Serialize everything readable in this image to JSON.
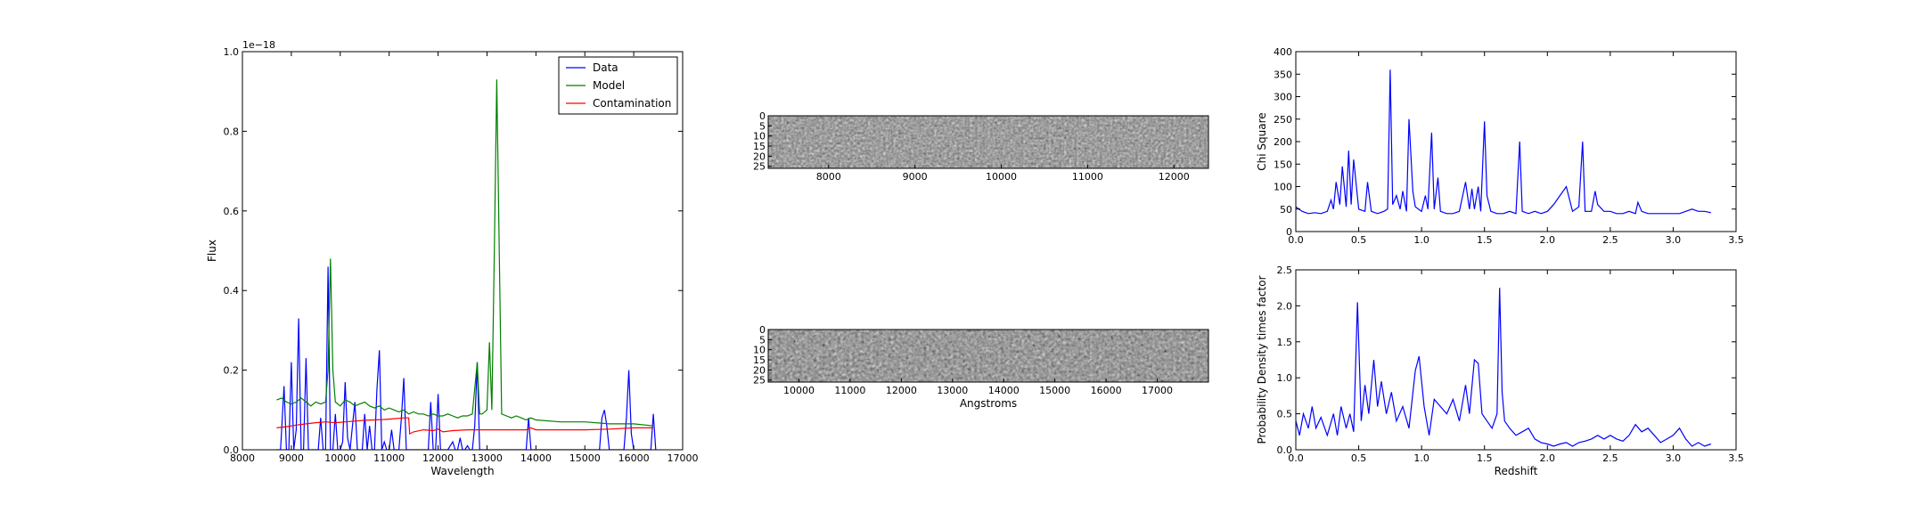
{
  "chart_data": [
    {
      "id": "spectrum",
      "type": "line",
      "xlabel": "Wavelength",
      "ylabel": "Flux",
      "offset_label": "1e−18",
      "xlim": [
        8000,
        17000
      ],
      "ylim": [
        0.0,
        1.0
      ],
      "xticks": [
        "8000",
        "9000",
        "10000",
        "11000",
        "12000",
        "13000",
        "14000",
        "15000",
        "16000",
        "17000"
      ],
      "yticks": [
        "0.0",
        "0.2",
        "0.4",
        "0.6",
        "0.8",
        "1.0"
      ],
      "legend_position": "top-right",
      "series": [
        {
          "name": "Data",
          "color": "#0000ff",
          "x": [
            8700,
            8780,
            8850,
            8900,
            8950,
            9000,
            9050,
            9100,
            9150,
            9200,
            9250,
            9300,
            9350,
            9400,
            9450,
            9500,
            9550,
            9600,
            9650,
            9700,
            9750,
            9800,
            9850,
            9900,
            9950,
            10000,
            10050,
            10100,
            10150,
            10200,
            10250,
            10300,
            10350,
            10400,
            10450,
            10500,
            10550,
            10600,
            10650,
            10700,
            10750,
            10800,
            10850,
            10900,
            10950,
            11000,
            11050,
            11100,
            11150,
            11200,
            11250,
            11300,
            11350,
            11400,
            11450,
            11500,
            11550,
            11600,
            11650,
            11700,
            11750,
            11800,
            11850,
            11900,
            11950,
            12000,
            12050,
            12100,
            12200,
            12300,
            12350,
            12400,
            12450,
            12500,
            12550,
            12600,
            12650,
            12700,
            12750,
            12800,
            12850,
            12900,
            13000,
            13500,
            13800,
            13850,
            13900,
            13950,
            14000,
            14500,
            15000,
            15200,
            15300,
            15350,
            15400,
            15450,
            15500,
            15550,
            15600,
            15650,
            15700,
            15750,
            15800,
            15850,
            15900,
            15950,
            16000,
            16100,
            16200,
            16300,
            16350,
            16400,
            16450
          ],
          "y": [
            0.0,
            0.0,
            0.16,
            0.0,
            0.0,
            0.22,
            0.0,
            0.05,
            0.33,
            0.0,
            0.0,
            0.23,
            0.0,
            0.0,
            0.0,
            0.0,
            0.0,
            0.08,
            0.0,
            0.0,
            0.46,
            0.0,
            0.0,
            0.09,
            0.0,
            0.0,
            0.02,
            0.17,
            0.03,
            0.0,
            0.06,
            0.12,
            0.0,
            0.0,
            0.0,
            0.09,
            0.0,
            0.06,
            0.0,
            0.0,
            0.15,
            0.25,
            0.0,
            0.02,
            0.0,
            0.0,
            0.05,
            0.0,
            0.0,
            0.0,
            0.08,
            0.18,
            0.0,
            0.0,
            0.0,
            0.0,
            0.0,
            0.0,
            0.0,
            0.0,
            0.0,
            0.0,
            0.12,
            0.0,
            0.0,
            0.14,
            0.0,
            0.0,
            0.0,
            0.02,
            0.0,
            0.0,
            0.03,
            0.0,
            0.0,
            0.01,
            0.0,
            0.0,
            0.06,
            0.22,
            0.0,
            0.0,
            0.0,
            0.0,
            0.0,
            0.08,
            0.0,
            0.0,
            0.0,
            0.0,
            0.0,
            0.0,
            0.0,
            0.08,
            0.1,
            0.06,
            0.0,
            0.0,
            0.0,
            0.0,
            0.0,
            0.0,
            0.0,
            0.08,
            0.2,
            0.04,
            0.0,
            0.0,
            0.0,
            0.0,
            0.0,
            0.09,
            0.0
          ]
        },
        {
          "name": "Model",
          "color": "#008000",
          "x": [
            8700,
            8800,
            8900,
            9000,
            9100,
            9200,
            9300,
            9400,
            9500,
            9600,
            9700,
            9750,
            9800,
            9850,
            9900,
            10000,
            10100,
            10200,
            10300,
            10400,
            10500,
            10600,
            10700,
            10800,
            10900,
            11000,
            11100,
            11200,
            11300,
            11400,
            11500,
            11600,
            11700,
            11800,
            11900,
            12000,
            12100,
            12200,
            12300,
            12400,
            12500,
            12600,
            12700,
            12800,
            12850,
            12900,
            13000,
            13050,
            13100,
            13150,
            13200,
            13250,
            13300,
            13400,
            13500,
            13600,
            13700,
            13800,
            13900,
            14000,
            14500,
            15000,
            15500,
            16000,
            16400
          ],
          "y": [
            0.125,
            0.13,
            0.12,
            0.115,
            0.12,
            0.13,
            0.12,
            0.11,
            0.12,
            0.115,
            0.12,
            0.2,
            0.48,
            0.2,
            0.12,
            0.11,
            0.125,
            0.12,
            0.11,
            0.115,
            0.12,
            0.11,
            0.105,
            0.11,
            0.1,
            0.105,
            0.1,
            0.095,
            0.1,
            0.09,
            0.095,
            0.09,
            0.09,
            0.085,
            0.09,
            0.085,
            0.085,
            0.09,
            0.085,
            0.08,
            0.085,
            0.085,
            0.09,
            0.22,
            0.09,
            0.09,
            0.1,
            0.27,
            0.1,
            0.5,
            0.93,
            0.5,
            0.09,
            0.085,
            0.08,
            0.085,
            0.08,
            0.075,
            0.08,
            0.075,
            0.07,
            0.07,
            0.065,
            0.065,
            0.06
          ]
        },
        {
          "name": "Contamination",
          "color": "#ff0000",
          "x": [
            8700,
            8900,
            9100,
            9300,
            9500,
            9700,
            9900,
            10100,
            10300,
            10500,
            10700,
            10900,
            11100,
            11300,
            11400,
            11420,
            11500,
            11700,
            11900,
            12000,
            12100,
            12300,
            12600,
            13000,
            13500,
            13800,
            13900,
            14000,
            14500,
            15000,
            15500,
            16000,
            16400
          ],
          "y": [
            0.055,
            0.058,
            0.062,
            0.065,
            0.068,
            0.07,
            0.068,
            0.07,
            0.072,
            0.074,
            0.075,
            0.076,
            0.078,
            0.08,
            0.08,
            0.04,
            0.045,
            0.05,
            0.048,
            0.052,
            0.045,
            0.048,
            0.05,
            0.05,
            0.05,
            0.05,
            0.055,
            0.05,
            0.05,
            0.05,
            0.052,
            0.055,
            0.055
          ]
        }
      ]
    },
    {
      "id": "stamp-1",
      "type": "heatmap",
      "xlim": [
        7300,
        12400
      ],
      "xticks": [
        "8000",
        "9000",
        "10000",
        "11000",
        "12000"
      ],
      "yticks": [
        "0",
        "5",
        "10",
        "15",
        "20",
        "25"
      ]
    },
    {
      "id": "stamp-2",
      "type": "heatmap",
      "xlabel": "Angstroms",
      "xlim": [
        9400,
        18000
      ],
      "xticks": [
        "10000",
        "11000",
        "12000",
        "13000",
        "14000",
        "15000",
        "16000",
        "17000"
      ],
      "yticks": [
        "0",
        "5",
        "10",
        "15",
        "20",
        "25"
      ]
    },
    {
      "id": "chi-square",
      "type": "line",
      "ylabel": "Chi Square",
      "xlim": [
        0.0,
        3.5
      ],
      "ylim": [
        0,
        400
      ],
      "xticks": [
        "0.0",
        "0.5",
        "1.0",
        "1.5",
        "2.0",
        "2.5",
        "3.0",
        "3.5"
      ],
      "yticks": [
        "0",
        "50",
        "100",
        "150",
        "200",
        "250",
        "300",
        "350",
        "400"
      ],
      "series": [
        {
          "color": "#0000ff",
          "x": [
            0.0,
            0.05,
            0.1,
            0.15,
            0.2,
            0.25,
            0.28,
            0.3,
            0.32,
            0.35,
            0.37,
            0.4,
            0.42,
            0.44,
            0.46,
            0.5,
            0.55,
            0.57,
            0.6,
            0.65,
            0.7,
            0.73,
            0.75,
            0.77,
            0.8,
            0.83,
            0.85,
            0.88,
            0.9,
            0.93,
            0.95,
            1.0,
            1.03,
            1.05,
            1.08,
            1.1,
            1.13,
            1.15,
            1.2,
            1.25,
            1.3,
            1.35,
            1.38,
            1.4,
            1.42,
            1.45,
            1.47,
            1.5,
            1.52,
            1.55,
            1.6,
            1.65,
            1.7,
            1.75,
            1.78,
            1.8,
            1.85,
            1.9,
            1.95,
            2.0,
            2.05,
            2.1,
            2.15,
            2.2,
            2.25,
            2.28,
            2.3,
            2.35,
            2.38,
            2.4,
            2.45,
            2.5,
            2.55,
            2.6,
            2.65,
            2.7,
            2.72,
            2.75,
            2.8,
            2.85,
            2.9,
            2.95,
            3.0,
            3.05,
            3.1,
            3.15,
            3.2,
            3.25,
            3.3
          ],
          "y": [
            55,
            45,
            40,
            42,
            40,
            45,
            70,
            50,
            110,
            60,
            145,
            55,
            180,
            60,
            160,
            50,
            45,
            110,
            45,
            40,
            45,
            50,
            360,
            60,
            80,
            50,
            90,
            45,
            250,
            90,
            55,
            45,
            80,
            50,
            220,
            50,
            120,
            45,
            40,
            40,
            45,
            110,
            50,
            95,
            50,
            100,
            45,
            245,
            80,
            45,
            40,
            40,
            45,
            40,
            200,
            45,
            40,
            45,
            40,
            45,
            60,
            80,
            100,
            45,
            55,
            200,
            45,
            45,
            90,
            60,
            45,
            45,
            40,
            40,
            45,
            40,
            65,
            45,
            40,
            40,
            40,
            40,
            40,
            40,
            45,
            50,
            45,
            45,
            42
          ]
        }
      ]
    },
    {
      "id": "probability",
      "type": "line",
      "ylabel": "Probability Density times factor",
      "xlabel": "Redshift",
      "xlim": [
        0.0,
        3.5
      ],
      "ylim": [
        0.0,
        2.5
      ],
      "xticks": [
        "0.0",
        "0.5",
        "1.0",
        "1.5",
        "2.0",
        "2.5",
        "3.0",
        "3.5"
      ],
      "yticks": [
        "0.0",
        "0.5",
        "1.0",
        "1.5",
        "2.0",
        "2.5"
      ],
      "series": [
        {
          "color": "#0000ff",
          "x": [
            0.0,
            0.03,
            0.06,
            0.1,
            0.13,
            0.16,
            0.2,
            0.25,
            0.3,
            0.33,
            0.36,
            0.4,
            0.43,
            0.46,
            0.49,
            0.52,
            0.55,
            0.58,
            0.62,
            0.65,
            0.68,
            0.72,
            0.76,
            0.8,
            0.85,
            0.9,
            0.95,
            0.98,
            1.02,
            1.06,
            1.1,
            1.15,
            1.2,
            1.25,
            1.3,
            1.35,
            1.38,
            1.42,
            1.45,
            1.48,
            1.52,
            1.56,
            1.6,
            1.62,
            1.64,
            1.66,
            1.7,
            1.75,
            1.8,
            1.85,
            1.9,
            1.95,
            2.0,
            2.05,
            2.1,
            2.15,
            2.2,
            2.25,
            2.3,
            2.35,
            2.4,
            2.45,
            2.5,
            2.55,
            2.6,
            2.65,
            2.7,
            2.75,
            2.8,
            2.85,
            2.9,
            2.95,
            3.0,
            3.05,
            3.1,
            3.15,
            3.2,
            3.25,
            3.3
          ],
          "y": [
            0.4,
            0.2,
            0.5,
            0.3,
            0.6,
            0.3,
            0.45,
            0.2,
            0.5,
            0.2,
            0.6,
            0.3,
            0.5,
            0.25,
            2.05,
            0.4,
            0.9,
            0.5,
            1.25,
            0.6,
            0.95,
            0.5,
            0.8,
            0.4,
            0.6,
            0.3,
            1.1,
            1.3,
            0.6,
            0.2,
            0.7,
            0.6,
            0.5,
            0.7,
            0.4,
            0.9,
            0.5,
            1.25,
            1.2,
            0.5,
            0.4,
            0.3,
            0.5,
            2.25,
            0.8,
            0.4,
            0.3,
            0.2,
            0.25,
            0.3,
            0.15,
            0.1,
            0.08,
            0.05,
            0.08,
            0.1,
            0.05,
            0.1,
            0.12,
            0.15,
            0.2,
            0.15,
            0.2,
            0.15,
            0.12,
            0.2,
            0.35,
            0.25,
            0.3,
            0.2,
            0.1,
            0.15,
            0.2,
            0.3,
            0.15,
            0.05,
            0.1,
            0.05,
            0.08
          ]
        }
      ]
    }
  ]
}
